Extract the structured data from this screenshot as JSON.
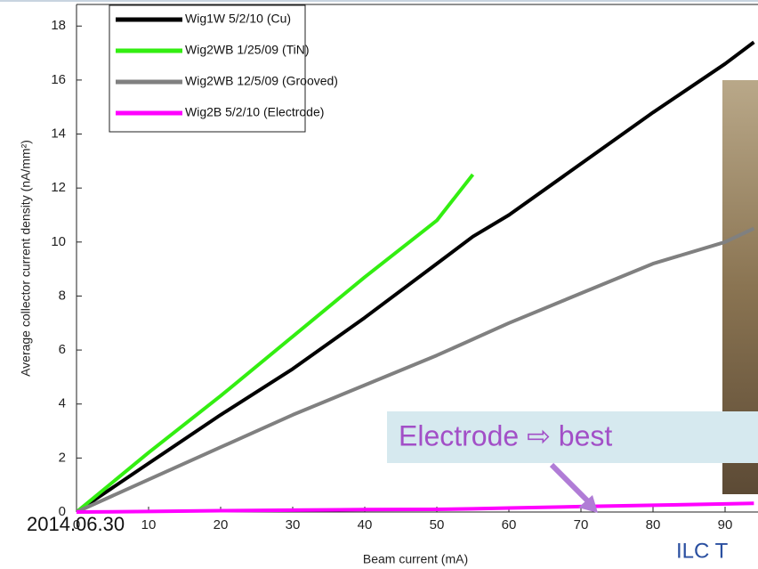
{
  "chart_data": {
    "type": "line",
    "x_label": "Beam current (mA)",
    "y_label": "Average collector current density (nA/mm²)",
    "x": [
      0,
      10,
      20,
      30,
      40,
      50,
      55,
      60,
      70,
      80,
      90,
      94
    ],
    "series": [
      {
        "name": "Wig1W 5/2/10 (Cu)",
        "color": "#000000",
        "values": [
          0,
          1.8,
          3.6,
          5.3,
          7.2,
          9.2,
          10.2,
          11.0,
          12.9,
          14.8,
          16.6,
          17.4
        ]
      },
      {
        "name": "Wig2WB 1/25/09 (TiN)",
        "color": "#33ee11",
        "values": [
          0,
          2.2,
          4.3,
          6.5,
          8.7,
          10.8,
          12.5,
          null,
          null,
          null,
          null,
          null
        ]
      },
      {
        "name": "Wig2WB 12/5/09 (Grooved)",
        "color": "#808080",
        "values": [
          0,
          1.2,
          2.4,
          3.6,
          4.7,
          5.8,
          6.4,
          7.0,
          8.1,
          9.2,
          10.0,
          10.5
        ]
      },
      {
        "name": "Wig2B 5/2/10 (Electrode)",
        "color": "#ff00ff",
        "values": [
          0,
          0.02,
          0.05,
          0.07,
          0.09,
          0.1,
          0.12,
          0.15,
          0.2,
          0.25,
          0.3,
          0.32
        ]
      }
    ],
    "xlim": [
      0,
      94.5
    ],
    "ylim": [
      0,
      18.8
    ],
    "xticks": [
      0,
      10,
      20,
      30,
      40,
      50,
      60,
      70,
      80,
      90
    ],
    "yticks": [
      0,
      2,
      4,
      6,
      8,
      10,
      12,
      14,
      16,
      18
    ],
    "legend": "upper-left",
    "annotations": [
      "Electrode ⇨ best"
    ]
  },
  "footer": {
    "date": "2014.06.30",
    "label": "ILC T"
  }
}
